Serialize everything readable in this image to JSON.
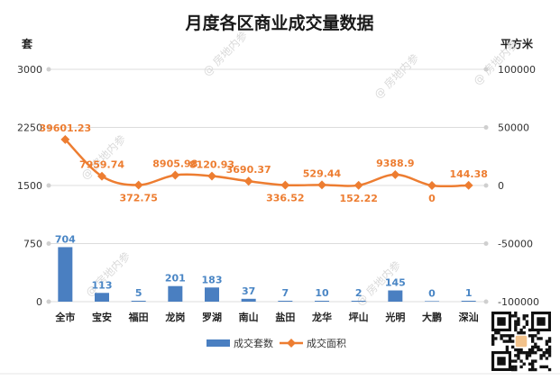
{
  "chart_data": {
    "type": "bar+line",
    "title": "月度各区商业成交量数据",
    "categories": [
      "全市",
      "宝安",
      "福田",
      "龙岗",
      "罗湖",
      "南山",
      "盐田",
      "龙华",
      "坪山",
      "光明",
      "大鹏",
      "深汕"
    ],
    "series": [
      {
        "name": "成交套数",
        "type": "bar",
        "axis": "left",
        "color": "#4a7fc1",
        "values": [
          704,
          113,
          5,
          201,
          183,
          37,
          7,
          10,
          2,
          145,
          0,
          1
        ],
        "labels": [
          "704",
          "113",
          "5",
          "201",
          "183",
          "37",
          "7",
          "10",
          "2",
          "145",
          "0",
          "1"
        ]
      },
      {
        "name": "成交面积",
        "type": "line",
        "axis": "right",
        "color": "#ed7d31",
        "values": [
          39601.23,
          7959.74,
          372.75,
          8905.98,
          8120.93,
          3690.37,
          336.52,
          529.44,
          152.22,
          9388.9,
          0,
          144.38
        ],
        "labels": [
          "39601.23",
          "7959.74",
          "372.75",
          "8905.98",
          "8120.93",
          "3690.37",
          "336.52",
          "529.44",
          "152.22",
          "9388.9",
          "0",
          "144.38"
        ]
      }
    ],
    "left_axis": {
      "unit_label": "套",
      "range": [
        0,
        3000
      ],
      "ticks": [
        0,
        750,
        1500,
        2250,
        3000
      ],
      "tick_labels": [
        "0",
        "750",
        "1500",
        "2250",
        "3000"
      ]
    },
    "right_axis": {
      "unit_label": "平方米",
      "range": [
        -100000,
        100000
      ],
      "ticks": [
        -100000,
        -50000,
        0,
        50000,
        100000
      ],
      "tick_labels": [
        "-100000",
        "-50000",
        "0",
        "50000",
        "100000"
      ]
    },
    "grid": true,
    "legend_position": "bottom"
  },
  "watermark": {
    "text": "@ 房地内参"
  },
  "qr_code": {
    "icon": "qr-code-icon"
  }
}
